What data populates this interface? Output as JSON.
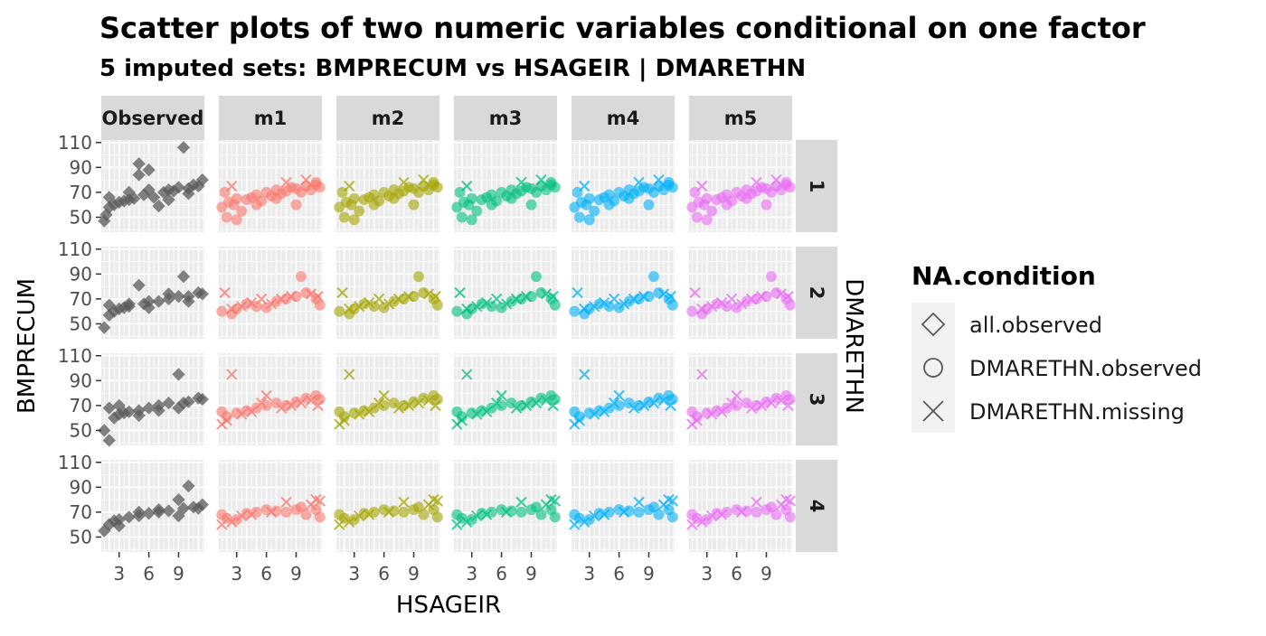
{
  "chart_data": {
    "type": "scatter",
    "title": "Scatter plots of two numeric variables conditional on one factor",
    "subtitle": "5  imputed sets:  BMPRECUM vs HSAGEIR | DMARETHN",
    "xlabel": "HSAGEIR",
    "ylabel": "BMPRECUM",
    "facet_col_label": "DMARETHN",
    "columns": [
      "Observed",
      "m1",
      "m2",
      "m3",
      "m4",
      "m5"
    ],
    "rows": [
      "1",
      "2",
      "3",
      "4"
    ],
    "column_colors": [
      "#595959",
      "#F8766D",
      "#A3A500",
      "#00BF7D",
      "#00B0F6",
      "#E76BF3"
    ],
    "x_ticks": [
      3,
      6,
      9
    ],
    "y_ticks": [
      50,
      70,
      90,
      110
    ],
    "xlim": [
      1.2,
      11.6
    ],
    "ylim": [
      38,
      112
    ],
    "legend": {
      "title": "NA.condition",
      "entries": [
        {
          "label": "all.observed",
          "shape": "diamond"
        },
        {
          "label": "DMARETHN.observed",
          "shape": "circle"
        },
        {
          "label": "DMARETHN.missing",
          "shape": "cross"
        }
      ]
    },
    "observed": [
      {
        "row": "1",
        "points": [
          [
            1.5,
            47
          ],
          [
            1.7,
            52
          ],
          [
            2,
            58
          ],
          [
            2.5,
            60
          ],
          [
            3,
            62
          ],
          [
            3.5,
            63
          ],
          [
            4,
            64
          ],
          [
            4.5,
            65
          ],
          [
            5,
            84
          ],
          [
            5,
            93
          ],
          [
            5.5,
            68
          ],
          [
            6,
            88
          ],
          [
            6.5,
            66
          ],
          [
            7,
            59
          ],
          [
            7.5,
            70
          ],
          [
            8,
            72
          ],
          [
            8.5,
            71
          ],
          [
            9,
            74
          ],
          [
            9.5,
            106
          ],
          [
            10,
            73
          ],
          [
            10.5,
            76
          ],
          [
            11,
            75
          ],
          [
            11.4,
            80
          ],
          [
            2,
            66
          ],
          [
            4,
            70
          ],
          [
            6,
            72
          ],
          [
            8,
            64
          ],
          [
            10,
            69
          ]
        ]
      },
      {
        "row": "2",
        "points": [
          [
            1.5,
            47
          ],
          [
            2,
            57
          ],
          [
            2.5,
            60
          ],
          [
            3,
            62
          ],
          [
            3.5,
            63
          ],
          [
            4,
            64
          ],
          [
            5,
            81
          ],
          [
            5.5,
            66
          ],
          [
            6,
            68
          ],
          [
            7,
            68
          ],
          [
            8,
            70
          ],
          [
            9,
            72
          ],
          [
            9.5,
            88
          ],
          [
            10,
            72
          ],
          [
            11,
            75
          ],
          [
            11.4,
            74
          ],
          [
            2,
            65
          ],
          [
            4,
            66
          ],
          [
            6,
            63
          ],
          [
            8,
            74
          ],
          [
            10,
            68
          ]
        ]
      },
      {
        "row": "3",
        "points": [
          [
            1.5,
            50
          ],
          [
            2,
            42
          ],
          [
            2,
            68
          ],
          [
            2.5,
            60
          ],
          [
            3,
            63
          ],
          [
            3.5,
            64
          ],
          [
            4,
            65
          ],
          [
            5,
            66
          ],
          [
            6,
            68
          ],
          [
            7,
            70
          ],
          [
            8,
            72
          ],
          [
            9,
            95
          ],
          [
            9.5,
            72
          ],
          [
            10,
            73
          ],
          [
            11,
            76
          ],
          [
            11.4,
            75
          ],
          [
            3,
            70
          ],
          [
            5,
            62
          ],
          [
            7,
            66
          ],
          [
            9,
            68
          ]
        ]
      },
      {
        "row": "4",
        "points": [
          [
            1.5,
            55
          ],
          [
            2,
            60
          ],
          [
            2.5,
            63
          ],
          [
            3,
            64
          ],
          [
            4,
            66
          ],
          [
            5,
            67
          ],
          [
            6,
            69
          ],
          [
            7,
            70
          ],
          [
            8,
            71
          ],
          [
            9,
            80
          ],
          [
            9.5,
            73
          ],
          [
            10,
            91
          ],
          [
            10.5,
            74
          ],
          [
            11,
            73
          ],
          [
            11.4,
            76
          ],
          [
            3,
            59
          ],
          [
            5,
            70
          ],
          [
            7,
            72
          ],
          [
            9,
            67
          ]
        ]
      }
    ],
    "imputed": [
      {
        "row": "1",
        "points": [
          [
            1.5,
            58
          ],
          [
            1.8,
            70
          ],
          [
            2.2,
            62
          ],
          [
            2.7,
            60
          ],
          [
            3,
            65
          ],
          [
            3.5,
            55
          ],
          [
            4,
            64
          ],
          [
            4.5,
            66
          ],
          [
            5,
            68
          ],
          [
            5.5,
            63
          ],
          [
            6,
            70
          ],
          [
            6.5,
            67
          ],
          [
            7,
            72
          ],
          [
            7.5,
            69
          ],
          [
            8,
            71
          ],
          [
            8.5,
            74
          ],
          [
            9,
            73
          ],
          [
            9.5,
            70
          ],
          [
            10,
            75
          ],
          [
            10.5,
            72
          ],
          [
            11,
            76
          ],
          [
            11.4,
            74
          ],
          [
            2,
            50
          ],
          [
            3,
            48
          ],
          [
            5,
            60
          ],
          [
            7,
            65
          ],
          [
            9,
            60
          ],
          [
            11,
            78
          ]
        ],
        "missing": [
          [
            2.5,
            75
          ],
          [
            8,
            78
          ],
          [
            10,
            80
          ]
        ]
      },
      {
        "row": "2",
        "points": [
          [
            1.5,
            60
          ],
          [
            2.5,
            58
          ],
          [
            3,
            62
          ],
          [
            4,
            66
          ],
          [
            5,
            64
          ],
          [
            6,
            63
          ],
          [
            7,
            68
          ],
          [
            8,
            70
          ],
          [
            9,
            72
          ],
          [
            9.5,
            88
          ],
          [
            10,
            75
          ],
          [
            11,
            70
          ],
          [
            11.4,
            65
          ]
        ],
        "missing": [
          [
            1.8,
            75
          ],
          [
            2.5,
            62
          ],
          [
            3.5,
            64
          ],
          [
            4.5,
            67
          ],
          [
            5.5,
            70
          ],
          [
            6.5,
            66
          ],
          [
            7.5,
            70
          ],
          [
            8.5,
            72
          ],
          [
            10.5,
            74
          ],
          [
            11.2,
            72
          ]
        ]
      },
      {
        "row": "3",
        "points": [
          [
            1.5,
            65
          ],
          [
            2,
            61
          ],
          [
            3,
            64
          ],
          [
            4,
            66
          ],
          [
            5,
            68
          ],
          [
            6,
            70
          ],
          [
            7,
            72
          ],
          [
            8,
            70
          ],
          [
            9,
            73
          ],
          [
            10,
            76
          ],
          [
            11,
            78
          ],
          [
            11.4,
            75
          ]
        ],
        "missing": [
          [
            1.5,
            55
          ],
          [
            2,
            58
          ],
          [
            2.5,
            95
          ],
          [
            3.5,
            63
          ],
          [
            4.5,
            65
          ],
          [
            5.5,
            72
          ],
          [
            6,
            78
          ],
          [
            7.5,
            68
          ],
          [
            8.5,
            70
          ],
          [
            9.5,
            72
          ],
          [
            10.5,
            74
          ],
          [
            11.2,
            70
          ]
        ]
      },
      {
        "row": "4",
        "points": [
          [
            1.5,
            68
          ],
          [
            2,
            65
          ],
          [
            3,
            64
          ],
          [
            4,
            69
          ],
          [
            5,
            70
          ],
          [
            6,
            72
          ],
          [
            7,
            71
          ],
          [
            8,
            70
          ],
          [
            9,
            72
          ],
          [
            9.5,
            74
          ],
          [
            10,
            68
          ],
          [
            11,
            72
          ],
          [
            11.4,
            66
          ]
        ],
        "missing": [
          [
            1.5,
            60
          ],
          [
            2.5,
            62
          ],
          [
            3.5,
            67
          ],
          [
            4.5,
            68
          ],
          [
            6.5,
            70
          ],
          [
            8,
            78
          ],
          [
            10.5,
            76
          ],
          [
            11,
            80
          ],
          [
            11.4,
            79
          ]
        ]
      }
    ]
  }
}
